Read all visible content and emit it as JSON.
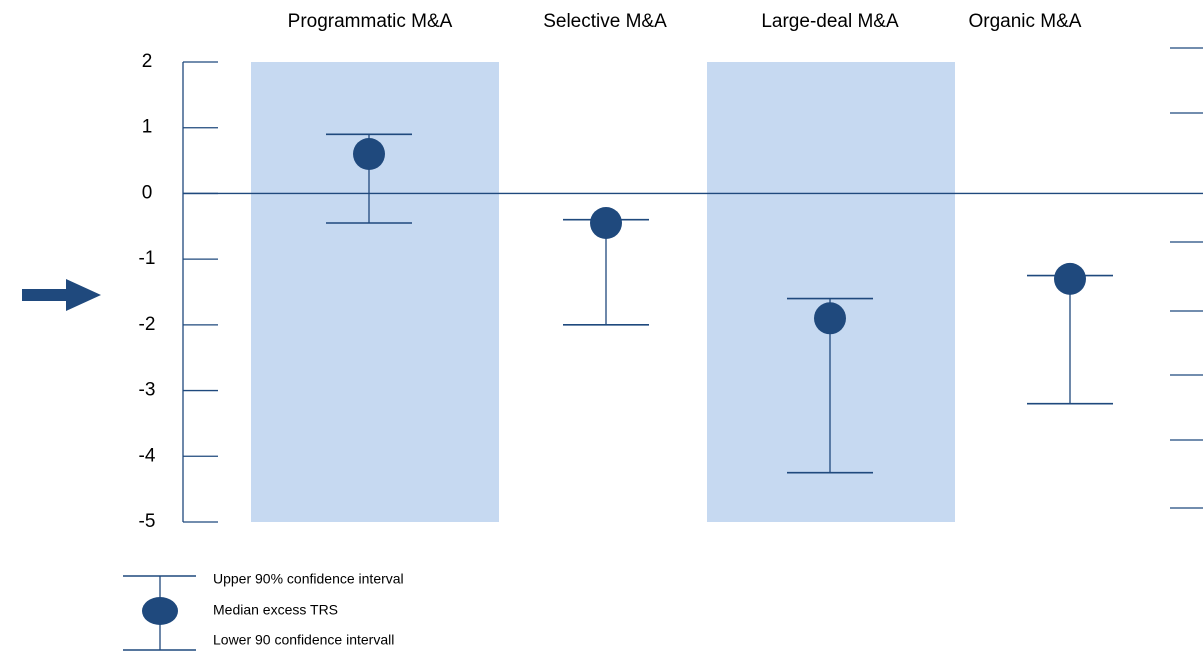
{
  "chart_data": {
    "type": "errorbar",
    "categories": [
      "Programmatic M&A",
      "Selective M&A",
      "Large-deal M&A",
      "Organic M&A"
    ],
    "series": [
      {
        "name": "Upper 90% confidence interval",
        "color": "#1f497d",
        "values": [
          0.9,
          -0.4,
          -1.6,
          -1.25
        ]
      },
      {
        "name": "Median excess TRS",
        "color": "#1f497d",
        "values": [
          0.6,
          -0.45,
          -1.9,
          -1.3
        ]
      },
      {
        "name": "Lower 90 confidence intervall",
        "color": "#1f497d",
        "values": [
          -0.45,
          -2.0,
          -4.25,
          -3.2
        ]
      }
    ],
    "shaded_color": "#c6d9f1",
    "ylim": [
      -5,
      2
    ],
    "yticks": [
      -5,
      -4,
      -3,
      -2,
      -1,
      0,
      1,
      2
    ]
  }
}
